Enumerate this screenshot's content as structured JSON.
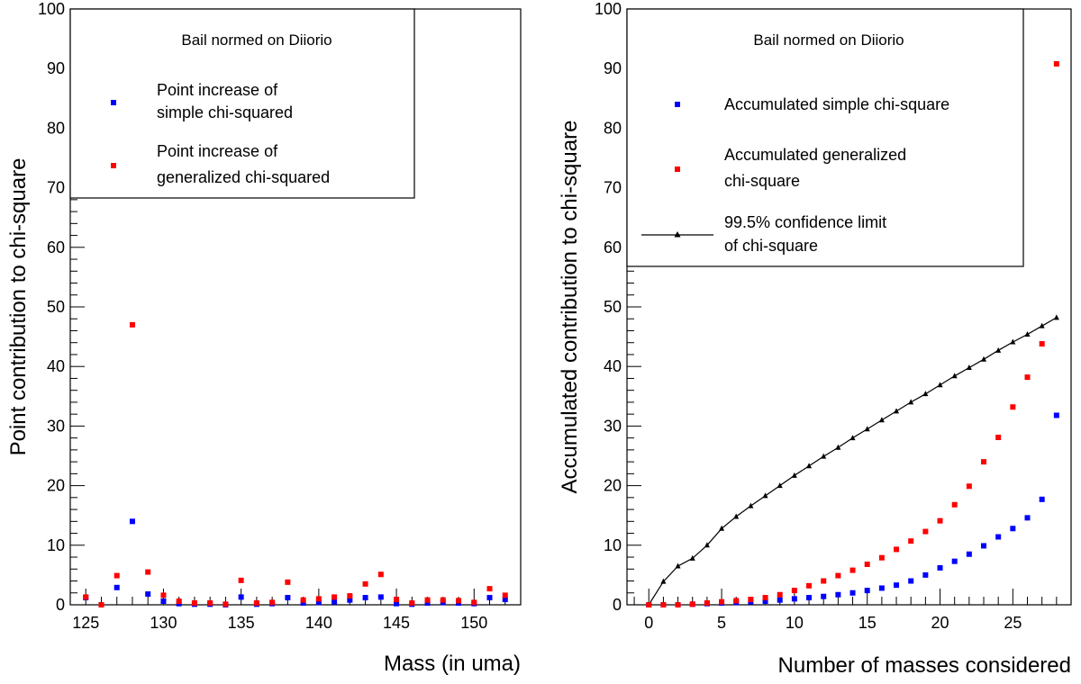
{
  "chart_data": [
    {
      "type": "scatter",
      "xlabel": "Mass (in uma)",
      "ylabel": "Point contribution to chi-square",
      "xlim": [
        124,
        153
      ],
      "ylim": [
        0,
        100
      ],
      "x_ticks": [
        125,
        130,
        135,
        140,
        145,
        150
      ],
      "y_ticks": [
        0,
        10,
        20,
        30,
        40,
        50,
        60,
        70,
        80,
        90,
        100
      ],
      "legend": {
        "title": "Bail normed on Diiorio",
        "entries": [
          {
            "line1": "Point increase of",
            "line2": "simple chi-squared",
            "color": "#0000ff"
          },
          {
            "line1": "Point increase of",
            "line2": "generalized chi-squared",
            "color": "#ff0000"
          }
        ]
      },
      "series": [
        {
          "name": "simple",
          "color": "#0000ff",
          "points": [
            [
              125,
              1.2
            ],
            [
              126,
              0
            ],
            [
              127,
              2.9
            ],
            [
              128,
              14
            ],
            [
              129,
              1.8
            ],
            [
              130,
              0.6
            ],
            [
              131,
              0.2
            ],
            [
              132,
              0.1
            ],
            [
              133,
              0.1
            ],
            [
              134,
              0
            ],
            [
              135,
              1.3
            ],
            [
              136,
              0.1
            ],
            [
              137,
              0.2
            ],
            [
              138,
              1.2
            ],
            [
              139,
              0.3
            ],
            [
              140,
              0.4
            ],
            [
              141,
              0.5
            ],
            [
              142,
              0.8
            ],
            [
              143,
              1.2
            ],
            [
              144,
              1.3
            ],
            [
              145,
              0.2
            ],
            [
              146,
              0.1
            ],
            [
              147,
              0.3
            ],
            [
              148,
              0.4
            ],
            [
              149,
              0.3
            ],
            [
              150,
              0.2
            ],
            [
              151,
              1.2
            ],
            [
              152,
              0.9
            ]
          ]
        },
        {
          "name": "generalized",
          "color": "#ff0000",
          "points": [
            [
              125,
              1.3
            ],
            [
              126,
              0
            ],
            [
              127,
              4.9
            ],
            [
              128,
              47
            ],
            [
              129,
              5.5
            ],
            [
              130,
              1.6
            ],
            [
              131,
              0.6
            ],
            [
              132,
              0.3
            ],
            [
              133,
              0.3
            ],
            [
              134,
              0.1
            ],
            [
              135,
              4.1
            ],
            [
              136,
              0.3
            ],
            [
              137,
              0.4
            ],
            [
              138,
              3.8
            ],
            [
              139,
              0.8
            ],
            [
              140,
              1
            ],
            [
              141,
              1.3
            ],
            [
              142,
              1.5
            ],
            [
              143,
              3.5
            ],
            [
              144,
              5.1
            ],
            [
              145,
              0.9
            ],
            [
              146,
              0.3
            ],
            [
              147,
              0.8
            ],
            [
              148,
              0.8
            ],
            [
              149,
              0.7
            ],
            [
              150,
              0.4
            ],
            [
              151,
              2.7
            ],
            [
              152,
              1.6
            ]
          ]
        }
      ]
    },
    {
      "type": "scatter",
      "xlabel": "Number of masses considered",
      "ylabel": "Accumulated contribution to chi-square",
      "xlim": [
        -1.5,
        29
      ],
      "ylim": [
        0,
        100
      ],
      "x_ticks": [
        0,
        5,
        10,
        15,
        20,
        25
      ],
      "y_ticks": [
        0,
        10,
        20,
        30,
        40,
        50,
        60,
        70,
        80,
        90,
        100
      ],
      "legend": {
        "title": "Bail normed on Diiorio",
        "entries": [
          {
            "line1": "Accumulated simple chi-square",
            "line2": "",
            "color": "#0000ff"
          },
          {
            "line1": "Accumulated generalized",
            "line2": "chi-square",
            "color": "#ff0000"
          },
          {
            "line1": "99.5% confidence limit",
            "line2": "of chi-square",
            "color": "#000000"
          }
        ]
      },
      "series": [
        {
          "name": "accumulated-simple",
          "color": "#0000ff",
          "points": [
            [
              0,
              0
            ],
            [
              1,
              0
            ],
            [
              2,
              0
            ],
            [
              3,
              0.1
            ],
            [
              4,
              0.2
            ],
            [
              5,
              0.3
            ],
            [
              6,
              0.4
            ],
            [
              7,
              0.5
            ],
            [
              8,
              0.6
            ],
            [
              9,
              0.8
            ],
            [
              10,
              1
            ],
            [
              11,
              1.2
            ],
            [
              12,
              1.4
            ],
            [
              13,
              1.7
            ],
            [
              14,
              2
            ],
            [
              15,
              2.4
            ],
            [
              16,
              2.8
            ],
            [
              17,
              3.3
            ],
            [
              18,
              4
            ],
            [
              19,
              5
            ],
            [
              20,
              6.2
            ],
            [
              21,
              7.3
            ],
            [
              22,
              8.5
            ],
            [
              23,
              9.9
            ],
            [
              24,
              11.4
            ],
            [
              25,
              12.8
            ],
            [
              26,
              14.6
            ],
            [
              27,
              17.7
            ],
            [
              28,
              31.8
            ]
          ]
        },
        {
          "name": "accumulated-generalized",
          "color": "#ff0000",
          "points": [
            [
              0,
              0
            ],
            [
              1,
              0
            ],
            [
              2,
              0
            ],
            [
              3,
              0.1
            ],
            [
              4,
              0.3
            ],
            [
              5,
              0.5
            ],
            [
              6,
              0.7
            ],
            [
              7,
              0.9
            ],
            [
              8,
              1.2
            ],
            [
              9,
              1.7
            ],
            [
              10,
              2.4
            ],
            [
              11,
              3.2
            ],
            [
              12,
              4
            ],
            [
              13,
              4.9
            ],
            [
              14,
              5.8
            ],
            [
              15,
              6.8
            ],
            [
              16,
              7.9
            ],
            [
              17,
              9.3
            ],
            [
              18,
              10.7
            ],
            [
              19,
              12.3
            ],
            [
              20,
              14.1
            ],
            [
              21,
              16.8
            ],
            [
              22,
              19.9
            ],
            [
              23,
              24
            ],
            [
              24,
              28.1
            ],
            [
              25,
              33.2
            ],
            [
              26,
              38.2
            ],
            [
              27,
              43.8
            ],
            [
              28,
              90.8
            ]
          ]
        },
        {
          "name": "confidence-limit",
          "color": "#000000",
          "line": true,
          "points": [
            [
              0,
              0
            ],
            [
              1,
              3.9
            ],
            [
              2,
              6.5
            ],
            [
              3,
              7.8
            ],
            [
              4,
              10
            ],
            [
              5,
              12.8
            ],
            [
              6,
              14.8
            ],
            [
              7,
              16.6
            ],
            [
              8,
              18.3
            ],
            [
              9,
              20
            ],
            [
              10,
              21.7
            ],
            [
              11,
              23.3
            ],
            [
              12,
              24.9
            ],
            [
              13,
              26.4
            ],
            [
              14,
              28
            ],
            [
              15,
              29.5
            ],
            [
              16,
              31
            ],
            [
              17,
              32.5
            ],
            [
              18,
              34
            ],
            [
              19,
              35.4
            ],
            [
              20,
              36.9
            ],
            [
              21,
              38.4
            ],
            [
              22,
              39.8
            ],
            [
              23,
              41.2
            ],
            [
              24,
              42.7
            ],
            [
              25,
              44.1
            ],
            [
              26,
              45.4
            ],
            [
              27,
              46.8
            ],
            [
              28,
              48.2
            ]
          ]
        }
      ]
    }
  ]
}
